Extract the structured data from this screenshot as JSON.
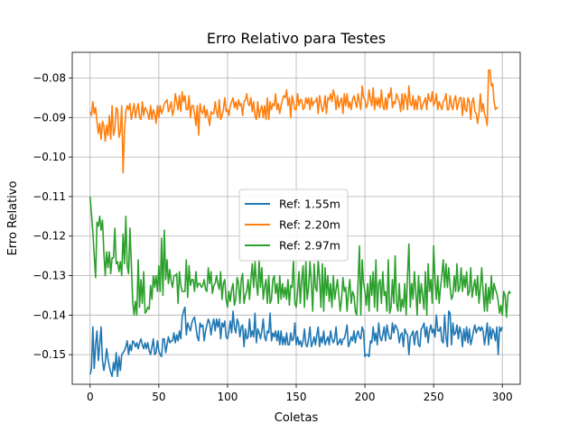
{
  "chart_data": {
    "type": "line",
    "title": "Erro Relativo para Testes",
    "xlabel": "Coletas",
    "ylabel": "Erro Relativo",
    "xlim": [
      -13,
      313
    ],
    "ylim": [
      -0.1575,
      -0.0735
    ],
    "xticks": [
      0,
      50,
      100,
      150,
      200,
      250,
      300
    ],
    "xtick_labels": [
      "0",
      "50",
      "100",
      "150",
      "200",
      "250",
      "300"
    ],
    "yticks": [
      -0.15,
      -0.14,
      -0.13,
      -0.12,
      -0.11,
      -0.1,
      -0.09,
      -0.08
    ],
    "ytick_labels": [
      "−0.15",
      "−0.14",
      "−0.13",
      "−0.12",
      "−0.11",
      "−0.10",
      "−0.09",
      "−0.08"
    ],
    "grid": true,
    "legend_position": "center",
    "x_start": 0,
    "x_step": 1,
    "series": [
      {
        "name": "Ref: 1.55m",
        "color": "#1f77b4",
        "values": [
          -0.155,
          -0.1535,
          -0.143,
          -0.1535,
          -0.1475,
          -0.144,
          -0.1515,
          -0.1475,
          -0.143,
          -0.1515,
          -0.154,
          -0.152,
          -0.1485,
          -0.151,
          -0.153,
          -0.1545,
          -0.1555,
          -0.152,
          -0.154,
          -0.1495,
          -0.1555,
          -0.1505,
          -0.154,
          -0.15,
          -0.1495,
          -0.149,
          -0.148,
          -0.1465,
          -0.15,
          -0.1475,
          -0.149,
          -0.1465,
          -0.147,
          -0.148,
          -0.147,
          -0.1485,
          -0.147,
          -0.146,
          -0.1475,
          -0.1485,
          -0.147,
          -0.1485,
          -0.147,
          -0.149,
          -0.15,
          -0.148,
          -0.146,
          -0.15,
          -0.1495,
          -0.1465,
          -0.149,
          -0.15,
          -0.1505,
          -0.146,
          -0.146,
          -0.1495,
          -0.1475,
          -0.1455,
          -0.147,
          -0.1465,
          -0.1465,
          -0.1445,
          -0.147,
          -0.145,
          -0.1465,
          -0.144,
          -0.146,
          -0.1405,
          -0.139,
          -0.138,
          -0.145,
          -0.142,
          -0.143,
          -0.144,
          -0.142,
          -0.141,
          -0.1405,
          -0.143,
          -0.1455,
          -0.1465,
          -0.142,
          -0.143,
          -0.1425,
          -0.1465,
          -0.144,
          -0.1425,
          -0.141,
          -0.142,
          -0.145,
          -0.1425,
          -0.141,
          -0.144,
          -0.141,
          -0.143,
          -0.141,
          -0.146,
          -0.142,
          -0.143,
          -0.1415,
          -0.1455,
          -0.146,
          -0.144,
          -0.1415,
          -0.1445,
          -0.139,
          -0.143,
          -0.1445,
          -0.141,
          -0.142,
          -0.1455,
          -0.143,
          -0.1425,
          -0.148,
          -0.1435,
          -0.146,
          -0.1455,
          -0.141,
          -0.1455,
          -0.144,
          -0.1455,
          -0.1395,
          -0.147,
          -0.1435,
          -0.1445,
          -0.146,
          -0.144,
          -0.141,
          -0.1455,
          -0.1465,
          -0.144,
          -0.1445,
          -0.1395,
          -0.1465,
          -0.1445,
          -0.1455,
          -0.144,
          -0.1465,
          -0.144,
          -0.1475,
          -0.144,
          -0.1475,
          -0.1455,
          -0.1475,
          -0.1445,
          -0.1475,
          -0.1475,
          -0.1445,
          -0.1465,
          -0.146,
          -0.142,
          -0.1475,
          -0.1455,
          -0.1475,
          -0.1465,
          -0.148,
          -0.1465,
          -0.1435,
          -0.1475,
          -0.148,
          -0.146,
          -0.143,
          -0.148,
          -0.147,
          -0.1455,
          -0.1475,
          -0.145,
          -0.143,
          -0.148,
          -0.1455,
          -0.147,
          -0.144,
          -0.1475,
          -0.1465,
          -0.1455,
          -0.1475,
          -0.144,
          -0.146,
          -0.147,
          -0.146,
          -0.143,
          -0.1475,
          -0.147,
          -0.146,
          -0.1475,
          -0.146,
          -0.146,
          -0.1445,
          -0.1425,
          -0.148,
          -0.147,
          -0.1455,
          -0.1465,
          -0.144,
          -0.147,
          -0.145,
          -0.144,
          -0.1455,
          -0.146,
          -0.143,
          -0.144,
          -0.1505,
          -0.15,
          -0.15,
          -0.1505,
          -0.1465,
          -0.147,
          -0.143,
          -0.1465,
          -0.1445,
          -0.1475,
          -0.142,
          -0.1455,
          -0.1465,
          -0.145,
          -0.143,
          -0.1465,
          -0.1425,
          -0.1445,
          -0.146,
          -0.146,
          -0.142,
          -0.1445,
          -0.1425,
          -0.143,
          -0.144,
          -0.147,
          -0.145,
          -0.1445,
          -0.148,
          -0.1435,
          -0.1445,
          -0.145,
          -0.15,
          -0.1455,
          -0.145,
          -0.144,
          -0.1475,
          -0.1445,
          -0.144,
          -0.1475,
          -0.148,
          -0.1435,
          -0.143,
          -0.142,
          -0.1455,
          -0.143,
          -0.147,
          -0.144,
          -0.1425,
          -0.1445,
          -0.1435,
          -0.1455,
          -0.14,
          -0.144,
          -0.144,
          -0.143,
          -0.1465,
          -0.147,
          -0.14,
          -0.1455,
          -0.148,
          -0.139,
          -0.1395,
          -0.1475,
          -0.142,
          -0.145,
          -0.1445,
          -0.1425,
          -0.146,
          -0.143,
          -0.1445,
          -0.148,
          -0.1435,
          -0.1465,
          -0.143,
          -0.147,
          -0.1435,
          -0.1475,
          -0.146,
          -0.144,
          -0.1425,
          -0.1445,
          -0.1435,
          -0.143,
          -0.144,
          -0.143,
          -0.144,
          -0.1475,
          -0.145,
          -0.142,
          -0.1475,
          -0.143,
          -0.146,
          -0.1435,
          -0.1445,
          -0.1465,
          -0.143,
          -0.15,
          -0.143,
          -0.144,
          -0.143
        ]
      },
      {
        "name": "Ref: 2.20m",
        "color": "#ff7f0e",
        "values": [
          -0.0885,
          -0.0895,
          -0.086,
          -0.089,
          -0.0875,
          -0.091,
          -0.094,
          -0.0915,
          -0.0955,
          -0.091,
          -0.092,
          -0.096,
          -0.092,
          -0.0945,
          -0.0895,
          -0.0955,
          -0.087,
          -0.0945,
          -0.093,
          -0.0875,
          -0.088,
          -0.095,
          -0.0935,
          -0.087,
          -0.104,
          -0.0935,
          -0.0885,
          -0.087,
          -0.088,
          -0.0865,
          -0.0905,
          -0.0885,
          -0.0865,
          -0.09,
          -0.088,
          -0.0865,
          -0.09,
          -0.0905,
          -0.086,
          -0.0895,
          -0.0875,
          -0.088,
          -0.089,
          -0.0905,
          -0.087,
          -0.0905,
          -0.088,
          -0.089,
          -0.0915,
          -0.087,
          -0.09,
          -0.087,
          -0.089,
          -0.088,
          -0.0865,
          -0.086,
          -0.0855,
          -0.0885,
          -0.0875,
          -0.086,
          -0.0895,
          -0.088,
          -0.084,
          -0.086,
          -0.088,
          -0.0845,
          -0.0885,
          -0.0835,
          -0.086,
          -0.0845,
          -0.088,
          -0.088,
          -0.0845,
          -0.09,
          -0.087,
          -0.087,
          -0.089,
          -0.092,
          -0.087,
          -0.0945,
          -0.0865,
          -0.0885,
          -0.089,
          -0.087,
          -0.09,
          -0.088,
          -0.09,
          -0.092,
          -0.0885,
          -0.089,
          -0.089,
          -0.086,
          -0.0885,
          -0.09,
          -0.0855,
          -0.0905,
          -0.0895,
          -0.088,
          -0.085,
          -0.0885,
          -0.088,
          -0.0895,
          -0.087,
          -0.086,
          -0.085,
          -0.0875,
          -0.086,
          -0.088,
          -0.0855,
          -0.087,
          -0.0865,
          -0.0895,
          -0.086,
          -0.0855,
          -0.084,
          -0.0865,
          -0.087,
          -0.085,
          -0.0885,
          -0.086,
          -0.0895,
          -0.0905,
          -0.086,
          -0.09,
          -0.088,
          -0.087,
          -0.09,
          -0.087,
          -0.0905,
          -0.085,
          -0.0905,
          -0.086,
          -0.088,
          -0.0865,
          -0.087,
          -0.084,
          -0.088,
          -0.0865,
          -0.089,
          -0.087,
          -0.0855,
          -0.0845,
          -0.085,
          -0.083,
          -0.087,
          -0.085,
          -0.09,
          -0.0845,
          -0.086,
          -0.088,
          -0.088,
          -0.084,
          -0.087,
          -0.0855,
          -0.0855,
          -0.088,
          -0.0875,
          -0.085,
          -0.0865,
          -0.085,
          -0.088,
          -0.085,
          -0.087,
          -0.086,
          -0.086,
          -0.085,
          -0.089,
          -0.0845,
          -0.0865,
          -0.0885,
          -0.0875,
          -0.0845,
          -0.089,
          -0.085,
          -0.0855,
          -0.084,
          -0.086,
          -0.083,
          -0.0845,
          -0.088,
          -0.0845,
          -0.0875,
          -0.086,
          -0.085,
          -0.089,
          -0.084,
          -0.087,
          -0.084,
          -0.0875,
          -0.086,
          -0.088,
          -0.0855,
          -0.0845,
          -0.086,
          -0.0875,
          -0.084,
          -0.086,
          -0.088,
          -0.082,
          -0.085,
          -0.0855,
          -0.0875,
          -0.0865,
          -0.083,
          -0.0855,
          -0.087,
          -0.0825,
          -0.088,
          -0.085,
          -0.087,
          -0.085,
          -0.0875,
          -0.083,
          -0.087,
          -0.088,
          -0.085,
          -0.088,
          -0.084,
          -0.085,
          -0.0825,
          -0.0875,
          -0.086,
          -0.0865,
          -0.084,
          -0.085,
          -0.086,
          -0.0885,
          -0.084,
          -0.088,
          -0.084,
          -0.085,
          -0.088,
          -0.082,
          -0.0865,
          -0.087,
          -0.0845,
          -0.088,
          -0.0855,
          -0.088,
          -0.0845,
          -0.085,
          -0.088,
          -0.087,
          -0.086,
          -0.085,
          -0.088,
          -0.084,
          -0.0855,
          -0.086,
          -0.0835,
          -0.087,
          -0.086,
          -0.084,
          -0.088,
          -0.086,
          -0.087,
          -0.088,
          -0.086,
          -0.0855,
          -0.084,
          -0.088,
          -0.088,
          -0.0845,
          -0.087,
          -0.088,
          -0.0855,
          -0.0845,
          -0.088,
          -0.0865,
          -0.085,
          -0.085,
          -0.0895,
          -0.085,
          -0.088,
          -0.0885,
          -0.085,
          -0.086,
          -0.0905,
          -0.086,
          -0.085,
          -0.0885,
          -0.089,
          -0.0915,
          -0.089,
          -0.084,
          -0.0885,
          -0.0865,
          -0.089,
          -0.09,
          -0.092,
          -0.078,
          -0.078,
          -0.082,
          -0.0815,
          -0.086,
          -0.088,
          -0.0875,
          -0.0875
        ]
      },
      {
        "name": "Ref: 2.97m",
        "color": "#2ca02c",
        "values": [
          -0.11,
          -0.1145,
          -0.119,
          -0.125,
          -0.1305,
          -0.1165,
          -0.1175,
          -0.115,
          -0.1185,
          -0.116,
          -0.124,
          -0.13,
          -0.124,
          -0.128,
          -0.124,
          -0.1295,
          -0.1255,
          -0.1255,
          -0.118,
          -0.127,
          -0.1265,
          -0.129,
          -0.1265,
          -0.13,
          -0.1195,
          -0.127,
          -0.115,
          -0.1275,
          -0.1295,
          -0.118,
          -0.127,
          -0.1365,
          -0.14,
          -0.1365,
          -0.14,
          -0.126,
          -0.138,
          -0.131,
          -0.137,
          -0.129,
          -0.1395,
          -0.139,
          -0.138,
          -0.1385,
          -0.1325,
          -0.136,
          -0.13,
          -0.133,
          -0.13,
          -0.134,
          -0.1275,
          -0.134,
          -0.1205,
          -0.135,
          -0.1185,
          -0.131,
          -0.126,
          -0.132,
          -0.1285,
          -0.1315,
          -0.133,
          -0.13,
          -0.13,
          -0.1295,
          -0.137,
          -0.129,
          -0.1325,
          -0.134,
          -0.134,
          -0.134,
          -0.126,
          -0.1355,
          -0.1275,
          -0.1325,
          -0.131,
          -0.131,
          -0.134,
          -0.129,
          -0.133,
          -0.132,
          -0.132,
          -0.133,
          -0.1325,
          -0.131,
          -0.1335,
          -0.134,
          -0.128,
          -0.132,
          -0.129,
          -0.1345,
          -0.1325,
          -0.132,
          -0.13,
          -0.132,
          -0.1335,
          -0.129,
          -0.136,
          -0.132,
          -0.131,
          -0.136,
          -0.138,
          -0.134,
          -0.1365,
          -0.1335,
          -0.132,
          -0.1375,
          -0.136,
          -0.1305,
          -0.132,
          -0.137,
          -0.131,
          -0.1295,
          -0.137,
          -0.135,
          -0.134,
          -0.131,
          -0.136,
          -0.131,
          -0.127,
          -0.133,
          -0.1265,
          -0.132,
          -0.135,
          -0.126,
          -0.133,
          -0.128,
          -0.136,
          -0.133,
          -0.131,
          -0.137,
          -0.13,
          -0.137,
          -0.136,
          -0.131,
          -0.13,
          -0.1345,
          -0.132,
          -0.137,
          -0.13,
          -0.136,
          -0.132,
          -0.1355,
          -0.133,
          -0.136,
          -0.131,
          -0.1375,
          -0.1325,
          -0.133,
          -0.126,
          -0.137,
          -0.138,
          -0.134,
          -0.129,
          -0.137,
          -0.131,
          -0.1275,
          -0.138,
          -0.1265,
          -0.136,
          -0.133,
          -0.1265,
          -0.132,
          -0.139,
          -0.127,
          -0.133,
          -0.134,
          -0.126,
          -0.131,
          -0.138,
          -0.127,
          -0.139,
          -0.128,
          -0.135,
          -0.13,
          -0.1365,
          -0.132,
          -0.138,
          -0.13,
          -0.136,
          -0.1335,
          -0.131,
          -0.135,
          -0.139,
          -0.136,
          -0.1305,
          -0.134,
          -0.133,
          -0.139,
          -0.134,
          -0.131,
          -0.137,
          -0.134,
          -0.135,
          -0.139,
          -0.14,
          -0.132,
          -0.1225,
          -0.14,
          -0.126,
          -0.132,
          -0.134,
          -0.1375,
          -0.132,
          -0.139,
          -0.13,
          -0.135,
          -0.129,
          -0.138,
          -0.126,
          -0.139,
          -0.132,
          -0.131,
          -0.137,
          -0.129,
          -0.135,
          -0.134,
          -0.139,
          -0.126,
          -0.1395,
          -0.138,
          -0.131,
          -0.137,
          -0.125,
          -0.137,
          -0.139,
          -0.132,
          -0.139,
          -0.136,
          -0.138,
          -0.132,
          -0.14,
          -0.13,
          -0.122,
          -0.138,
          -0.132,
          -0.136,
          -0.129,
          -0.134,
          -0.14,
          -0.13,
          -0.137,
          -0.132,
          -0.135,
          -0.1385,
          -0.129,
          -0.14,
          -0.127,
          -0.134,
          -0.131,
          -0.137,
          -0.1225,
          -0.131,
          -0.136,
          -0.13,
          -0.137,
          -0.133,
          -0.13,
          -0.126,
          -0.133,
          -0.127,
          -0.133,
          -0.128,
          -0.133,
          -0.136,
          -0.135,
          -0.13,
          -0.134,
          -0.127,
          -0.134,
          -0.133,
          -0.128,
          -0.134,
          -0.13,
          -0.133,
          -0.129,
          -0.135,
          -0.134,
          -0.128,
          -0.1355,
          -0.133,
          -0.131,
          -0.135,
          -0.13,
          -0.137,
          -0.133,
          -0.128,
          -0.134,
          -0.139,
          -0.132,
          -0.139,
          -0.133,
          -0.137,
          -0.13,
          -0.136,
          -0.132,
          -0.1335,
          -0.1345,
          -0.1365,
          -0.1395,
          -0.1375,
          -0.14,
          -0.134,
          -0.135,
          -0.1405,
          -0.135,
          -0.134,
          -0.1345
        ]
      }
    ]
  }
}
